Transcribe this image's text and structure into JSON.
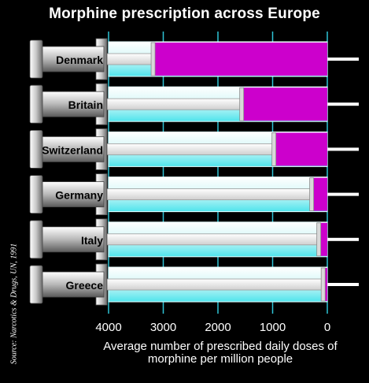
{
  "chart_data": {
    "type": "bar",
    "title": "Morphine prescription across Europe",
    "categories": [
      "Denmark",
      "Britain",
      "Switzerland",
      "Germany",
      "Italy",
      "Greece"
    ],
    "values": [
      3150,
      1530,
      940,
      250,
      120,
      40
    ],
    "xlabel": "Average number of prescribed daily doses of morphine per million people",
    "xlabel_lines": [
      "Average number of prescribed daily doses of",
      "morphine per million people"
    ],
    "xticks": [
      4000,
      3000,
      2000,
      1000,
      0
    ],
    "xlim": [
      4000,
      0
    ],
    "grid": true,
    "source": "Source: Narcotics & Drugs, UN, 1991",
    "colors": {
      "dose": "#cc00cc",
      "barrel": "#bff4f4",
      "background": "#000000",
      "grid": "#2ec4d6"
    }
  }
}
